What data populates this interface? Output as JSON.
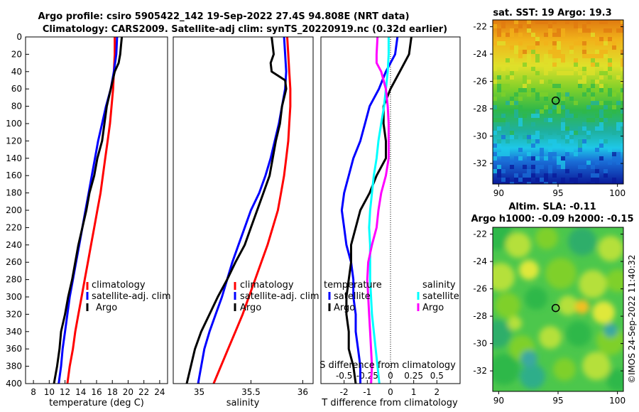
{
  "title": {
    "line1": "Argo profile: csiro 5905422_142 19-Sep-2022 27.4S 94.808E (NRT data)",
    "line2": "Climatology: CARS2009. Satellite-adj clim: synTS_20220919.nc (0.32d earlier)"
  },
  "chart_data": [
    {
      "type": "line",
      "panel": "temperature",
      "xlabel": "temperature (deg C)",
      "ylabel": "",
      "xlim": [
        7,
        25
      ],
      "ylim": [
        400,
        0
      ],
      "xticks": [
        8,
        10,
        12,
        14,
        16,
        18,
        20,
        22,
        24
      ],
      "yticks": [
        0,
        20,
        40,
        60,
        80,
        100,
        120,
        140,
        160,
        180,
        200,
        220,
        240,
        260,
        280,
        300,
        320,
        340,
        360,
        380,
        400
      ],
      "legend": [
        "climatology",
        "satellite-adj. clim",
        "Argo"
      ],
      "series": [
        {
          "name": "climatology",
          "color": "#ff0000",
          "points": [
            [
              18.3,
              0
            ],
            [
              18.3,
              20
            ],
            [
              18.2,
              40
            ],
            [
              18.1,
              60
            ],
            [
              17.9,
              80
            ],
            [
              17.7,
              100
            ],
            [
              17.4,
              120
            ],
            [
              17.1,
              140
            ],
            [
              16.8,
              160
            ],
            [
              16.5,
              180
            ],
            [
              16.1,
              200
            ],
            [
              15.7,
              220
            ],
            [
              15.3,
              240
            ],
            [
              14.9,
              260
            ],
            [
              14.5,
              280
            ],
            [
              14.1,
              300
            ],
            [
              13.7,
              320
            ],
            [
              13.3,
              340
            ],
            [
              13.0,
              360
            ],
            [
              12.6,
              380
            ],
            [
              12.3,
              400
            ]
          ]
        },
        {
          "name": "satellite-adj. clim",
          "color": "#0000ff",
          "points": [
            [
              18.6,
              0
            ],
            [
              18.5,
              20
            ],
            [
              18.2,
              40
            ],
            [
              17.8,
              60
            ],
            [
              17.2,
              80
            ],
            [
              16.7,
              100
            ],
            [
              16.2,
              120
            ],
            [
              15.8,
              140
            ],
            [
              15.4,
              160
            ],
            [
              15.0,
              180
            ],
            [
              14.6,
              200
            ],
            [
              14.2,
              220
            ],
            [
              13.8,
              240
            ],
            [
              13.4,
              260
            ],
            [
              13.0,
              280
            ],
            [
              12.6,
              300
            ],
            [
              12.3,
              320
            ],
            [
              12.0,
              340
            ],
            [
              11.7,
              360
            ],
            [
              11.5,
              380
            ],
            [
              11.2,
              400
            ]
          ]
        },
        {
          "name": "Argo",
          "color": "#000000",
          "points": [
            [
              19.2,
              0
            ],
            [
              19.1,
              10
            ],
            [
              19.0,
              20
            ],
            [
              18.8,
              30
            ],
            [
              18.3,
              40
            ],
            [
              17.8,
              60
            ],
            [
              17.3,
              80
            ],
            [
              17.0,
              100
            ],
            [
              16.7,
              120
            ],
            [
              16.1,
              140
            ],
            [
              15.7,
              160
            ],
            [
              15.1,
              180
            ],
            [
              14.7,
              200
            ],
            [
              14.2,
              220
            ],
            [
              13.7,
              240
            ],
            [
              13.3,
              260
            ],
            [
              12.9,
              280
            ],
            [
              12.4,
              300
            ],
            [
              12.0,
              320
            ],
            [
              11.5,
              340
            ],
            [
              11.3,
              360
            ],
            [
              11.0,
              380
            ],
            [
              10.6,
              400
            ]
          ]
        }
      ]
    },
    {
      "type": "line",
      "panel": "salinity",
      "xlabel": "salinity",
      "ylabel": "",
      "xlim": [
        34.75,
        36.1
      ],
      "ylim": [
        400,
        0
      ],
      "xticks": [
        35,
        35.5,
        36
      ],
      "xtick_labels": [
        "35",
        "35.5",
        "36"
      ],
      "legend": [
        "climatology",
        "satellite-adj. clim",
        "Argo"
      ],
      "series": [
        {
          "name": "climatology",
          "color": "#ff0000",
          "points": [
            [
              35.85,
              0
            ],
            [
              35.86,
              20
            ],
            [
              35.87,
              40
            ],
            [
              35.88,
              60
            ],
            [
              35.88,
              80
            ],
            [
              35.87,
              100
            ],
            [
              35.86,
              120
            ],
            [
              35.84,
              140
            ],
            [
              35.82,
              160
            ],
            [
              35.79,
              180
            ],
            [
              35.76,
              200
            ],
            [
              35.71,
              220
            ],
            [
              35.66,
              240
            ],
            [
              35.6,
              260
            ],
            [
              35.54,
              280
            ],
            [
              35.48,
              300
            ],
            [
              35.42,
              320
            ],
            [
              35.35,
              340
            ],
            [
              35.28,
              360
            ],
            [
              35.21,
              380
            ],
            [
              35.14,
              400
            ]
          ]
        },
        {
          "name": "satellite-adj. clim",
          "color": "#0000ff",
          "points": [
            [
              35.82,
              0
            ],
            [
              35.83,
              20
            ],
            [
              35.84,
              40
            ],
            [
              35.83,
              60
            ],
            [
              35.8,
              80
            ],
            [
              35.77,
              100
            ],
            [
              35.73,
              120
            ],
            [
              35.69,
              140
            ],
            [
              35.64,
              160
            ],
            [
              35.58,
              180
            ],
            [
              35.5,
              200
            ],
            [
              35.44,
              220
            ],
            [
              35.38,
              240
            ],
            [
              35.32,
              260
            ],
            [
              35.27,
              280
            ],
            [
              35.22,
              300
            ],
            [
              35.16,
              320
            ],
            [
              35.1,
              340
            ],
            [
              35.05,
              360
            ],
            [
              35.02,
              380
            ],
            [
              34.99,
              400
            ]
          ]
        },
        {
          "name": "Argo",
          "color": "#000000",
          "points": [
            [
              35.7,
              0
            ],
            [
              35.71,
              10
            ],
            [
              35.72,
              20
            ],
            [
              35.69,
              30
            ],
            [
              35.7,
              40
            ],
            [
              35.83,
              50
            ],
            [
              35.84,
              60
            ],
            [
              35.8,
              80
            ],
            [
              35.78,
              100
            ],
            [
              35.74,
              120
            ],
            [
              35.71,
              140
            ],
            [
              35.68,
              160
            ],
            [
              35.62,
              180
            ],
            [
              35.56,
              200
            ],
            [
              35.5,
              220
            ],
            [
              35.44,
              240
            ],
            [
              35.35,
              260
            ],
            [
              35.27,
              280
            ],
            [
              35.18,
              300
            ],
            [
              35.1,
              320
            ],
            [
              35.02,
              340
            ],
            [
              34.96,
              360
            ],
            [
              34.92,
              380
            ],
            [
              34.88,
              400
            ]
          ]
        }
      ]
    },
    {
      "type": "line",
      "panel": "differences",
      "xlabel": "T difference from climatology",
      "x2label": "S difference from climatology",
      "xlim": [
        -3,
        3
      ],
      "x2lim": [
        -0.75,
        0.75
      ],
      "ylim": [
        400,
        0
      ],
      "xticks": [
        -2,
        -1,
        0,
        1,
        2
      ],
      "x2ticks": [
        -0.5,
        -0.25,
        0,
        0.25,
        0.5
      ],
      "legend_titles": [
        "temperature",
        "salinity"
      ],
      "legend": [
        "satellite",
        "Argo",
        "satellite",
        "Argo"
      ],
      "series": [
        {
          "name": "T satellite",
          "color": "#0000ff",
          "points": [
            [
              0.3,
              0
            ],
            [
              0.2,
              20
            ],
            [
              -0.2,
              40
            ],
            [
              -0.5,
              60
            ],
            [
              -0.9,
              80
            ],
            [
              -1.1,
              100
            ],
            [
              -1.3,
              120
            ],
            [
              -1.6,
              140
            ],
            [
              -1.8,
              160
            ],
            [
              -2.0,
              180
            ],
            [
              -2.1,
              200
            ],
            [
              -2.0,
              220
            ],
            [
              -1.9,
              240
            ],
            [
              -1.7,
              260
            ],
            [
              -1.6,
              280
            ],
            [
              -1.6,
              300
            ],
            [
              -1.5,
              320
            ],
            [
              -1.5,
              340
            ],
            [
              -1.4,
              360
            ],
            [
              -1.3,
              380
            ],
            [
              -1.3,
              400
            ]
          ]
        },
        {
          "name": "T Argo",
          "color": "#000000",
          "points": [
            [
              0.9,
              0
            ],
            [
              0.8,
              20
            ],
            [
              0.4,
              40
            ],
            [
              0.0,
              60
            ],
            [
              -0.3,
              80
            ],
            [
              -0.3,
              100
            ],
            [
              -0.2,
              120
            ],
            [
              -0.2,
              140
            ],
            [
              -0.6,
              160
            ],
            [
              -0.9,
              180
            ],
            [
              -1.3,
              200
            ],
            [
              -1.5,
              220
            ],
            [
              -1.7,
              240
            ],
            [
              -1.7,
              260
            ],
            [
              -1.8,
              280
            ],
            [
              -1.9,
              300
            ],
            [
              -1.9,
              320
            ],
            [
              -1.8,
              340
            ],
            [
              -1.8,
              360
            ],
            [
              -1.6,
              380
            ],
            [
              -1.5,
              400
            ]
          ]
        },
        {
          "name": "S satellite",
          "color": "#00ffff",
          "points": [
            [
              -0.02,
              0
            ],
            [
              -0.02,
              20
            ],
            [
              -0.03,
              40
            ],
            [
              -0.05,
              60
            ],
            [
              -0.07,
              80
            ],
            [
              -0.1,
              100
            ],
            [
              -0.13,
              120
            ],
            [
              -0.15,
              140
            ],
            [
              -0.18,
              160
            ],
            [
              -0.2,
              180
            ],
            [
              -0.22,
              200
            ],
            [
              -0.23,
              220
            ],
            [
              -0.22,
              240
            ],
            [
              -0.22,
              260
            ],
            [
              -0.22,
              280
            ],
            [
              -0.21,
              300
            ],
            [
              -0.2,
              320
            ],
            [
              -0.18,
              340
            ],
            [
              -0.16,
              360
            ],
            [
              -0.14,
              380
            ],
            [
              -0.12,
              400
            ]
          ]
        },
        {
          "name": "S Argo",
          "color": "#ff00ff",
          "points": [
            [
              -0.14,
              0
            ],
            [
              -0.15,
              20
            ],
            [
              -0.15,
              30
            ],
            [
              -0.1,
              40
            ],
            [
              -0.05,
              60
            ],
            [
              -0.03,
              80
            ],
            [
              -0.02,
              100
            ],
            [
              -0.02,
              120
            ],
            [
              -0.02,
              140
            ],
            [
              -0.05,
              160
            ],
            [
              -0.1,
              180
            ],
            [
              -0.13,
              200
            ],
            [
              -0.15,
              220
            ],
            [
              -0.2,
              240
            ],
            [
              -0.24,
              260
            ],
            [
              -0.25,
              280
            ],
            [
              -0.24,
              300
            ],
            [
              -0.23,
              320
            ],
            [
              -0.22,
              340
            ],
            [
              -0.21,
              360
            ],
            [
              -0.2,
              380
            ],
            [
              -0.21,
              400
            ]
          ]
        }
      ]
    },
    {
      "type": "heatmap",
      "panel": "sat-sst-map",
      "title": "sat. SST: 19 Argo: 19.3",
      "xlim": [
        89.5,
        100.5
      ],
      "ylim": [
        -33.5,
        -21.5
      ],
      "xticks": [
        90,
        95,
        100
      ],
      "yticks": [
        -22,
        -24,
        -26,
        -28,
        -30,
        -32
      ],
      "marker": {
        "lon": 94.8,
        "lat": -27.4
      }
    },
    {
      "type": "heatmap",
      "panel": "altim-sla-map",
      "title_line1": "Altim. SLA: -0.11",
      "title_line2": "Argo h1000: -0.09 h2000: -0.15",
      "xlim": [
        89.5,
        100.5
      ],
      "ylim": [
        -33.5,
        -21.5
      ],
      "xticks": [
        90,
        95,
        100
      ],
      "yticks": [
        -22,
        -24,
        -26,
        -28,
        -30,
        -32
      ],
      "marker": {
        "lon": 94.8,
        "lat": -27.4
      }
    }
  ],
  "stamp": "©IMOS 24-Sep-2022 11:40:32"
}
